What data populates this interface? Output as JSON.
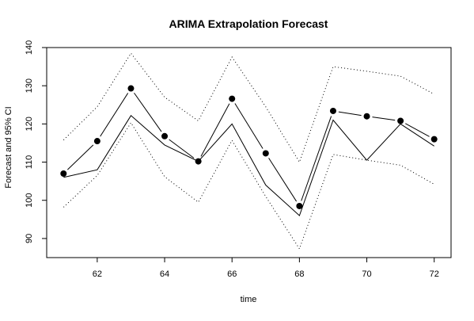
{
  "chart_data": {
    "type": "line",
    "title": "ARIMA Extrapolation Forecast",
    "xlabel": "time",
    "ylabel": "Forecast and 95% CI",
    "xlim": [
      60.5,
      72.5
    ],
    "ylim": [
      85,
      140
    ],
    "x_ticks": [
      62,
      64,
      66,
      68,
      70,
      72
    ],
    "x_tick_labels": [
      "62",
      "64",
      "66",
      "68",
      "70",
      "72"
    ],
    "y_ticks": [
      90,
      100,
      110,
      120,
      130,
      140
    ],
    "y_tick_labels": [
      "90",
      "100",
      "110",
      "120",
      "130",
      "140"
    ],
    "grid": false,
    "x": [
      61,
      62,
      63,
      64,
      65,
      66,
      67,
      68,
      69,
      70,
      71,
      72
    ],
    "series": [
      {
        "style": "solid-line",
        "values": [
          106,
          108,
          122.2,
          114.5,
          110.2,
          120,
          104,
          96,
          121,
          110.5,
          120,
          114.2
        ]
      },
      {
        "style": "points-connected",
        "values": [
          107,
          115.5,
          129.3,
          116.8,
          110.2,
          126.6,
          112.3,
          98.5,
          123.4,
          122,
          120.8,
          116
        ]
      },
      {
        "style": "dotted-upper",
        "values": [
          115.8,
          124.5,
          138.5,
          127,
          120.8,
          137.5,
          124.5,
          110,
          135,
          133.8,
          132.5,
          127.8
        ]
      },
      {
        "style": "dotted-lower",
        "values": [
          98.2,
          106.5,
          120.3,
          106.2,
          99.5,
          115.7,
          101,
          87.3,
          112,
          110.5,
          109.2,
          104.2
        ]
      }
    ]
  }
}
